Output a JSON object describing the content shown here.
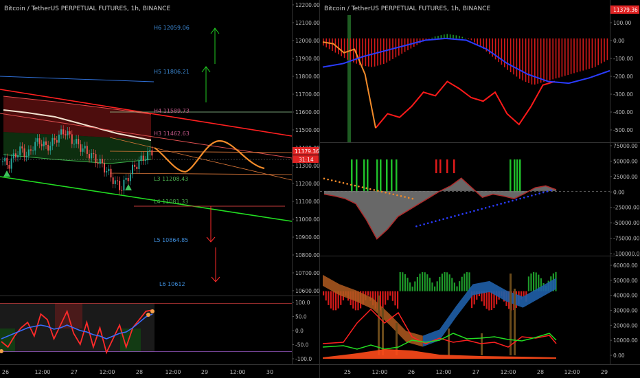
{
  "left_panel": {
    "title": "Bitcoin / TetherUS PERPETUAL FUTURES, 1h, BINANCE",
    "price_badge": "11379.36",
    "countdown_badge": "31:14",
    "price_axis": [
      "12200.00",
      "12100.00",
      "12000.00",
      "11900.00",
      "11800.00",
      "11700.00",
      "11600.00",
      "11500.00",
      "11400.00",
      "11300.00",
      "11200.00",
      "11100.00",
      "11000.00",
      "10900.00",
      "10800.00",
      "10700.00",
      "10600.00"
    ],
    "osc_axis": [
      "100.0",
      "50.0",
      "0.0",
      "-50.0",
      "-100.0"
    ],
    "levels": [
      {
        "label": "H6 12059.06",
        "color": "#3d8ad6"
      },
      {
        "label": "H5 11806.21",
        "color": "#3d8ad6"
      },
      {
        "label": "H4 11589.73",
        "color": "#c45a8a"
      },
      {
        "label": "H3 11462.63",
        "color": "#c45a8a"
      },
      {
        "label": "L3 11208.43",
        "color": "#4caf50"
      },
      {
        "label": "L4 11081.33",
        "color": "#4caf50"
      },
      {
        "label": "L5 10864.85",
        "color": "#3d8ad6"
      },
      {
        "label": "L6 10612",
        "color": "#3d8ad6"
      }
    ],
    "time_axis": [
      "26",
      "12:00",
      "27",
      "12:00",
      "28",
      "12:00",
      "29",
      "12:00",
      "30"
    ]
  },
  "right_panel": {
    "title": "Bitcoin / TetherUS PERPETUAL FUTURES, 1h, BINANCE",
    "price_badge": "11379.36",
    "top_axis": [
      "100.00",
      "0.00",
      "-100.00",
      "-200.00",
      "-300.00",
      "-400.00",
      "-500.00"
    ],
    "mid_axis": [
      "75000.00",
      "50000.00",
      "25000.00",
      "0.00",
      "-25000.00",
      "-50000.00",
      "-75000.00",
      "-100000.00"
    ],
    "bot_axis": [
      "60000.00",
      "50000.00",
      "40000.00",
      "30000.00",
      "20000.00",
      "10000.00",
      "0.00"
    ],
    "time_axis": [
      "25",
      "12:00",
      "26",
      "12:00",
      "27",
      "12:00",
      "28",
      "12:00",
      "29"
    ]
  },
  "chart_data": [
    {
      "type": "candlestick",
      "title": "Bitcoin / TetherUS PERPETUAL FUTURES, 1h, BINANCE",
      "ylim": [
        10560,
        12240
      ],
      "last_price": 11379.36,
      "pivot_levels": {
        "H6": 12059.06,
        "H5": 11806.21,
        "H4": 11589.73,
        "H3": 11462.63,
        "L3": 11208.43,
        "L4": 11081.33,
        "L5": 10864.85,
        "L6": 10612
      },
      "close_approx": [
        11320,
        11300,
        11360,
        11390,
        11350,
        11420,
        11440,
        11400,
        11430,
        11470,
        11500,
        11450,
        11420,
        11390,
        11360,
        11330,
        11300,
        11250,
        11200,
        11160,
        11220,
        11280,
        11320,
        11350,
        11379
      ]
    },
    {
      "type": "line",
      "title": "",
      "ylim": [
        -100,
        100
      ],
      "series": [
        {
          "values": [
            -40,
            -60,
            -20,
            10,
            30,
            -20,
            60,
            40,
            -30,
            20,
            70,
            -10,
            -50,
            30,
            -60,
            10,
            -80,
            -30,
            20,
            -60,
            10,
            40,
            70,
            75
          ]
        },
        {
          "values": [
            -30,
            -20,
            -10,
            0,
            10,
            15,
            20,
            15,
            5,
            10,
            20,
            10,
            0,
            -5,
            -15,
            -20,
            -30,
            -20,
            -10,
            -5,
            10,
            30,
            50,
            60
          ]
        }
      ]
    },
    {
      "type": "bar",
      "title": "",
      "ylim": [
        -560,
        130
      ],
      "values_histogram": [
        -40,
        -80,
        -120,
        -150,
        -160,
        -140,
        -100,
        -60,
        -20,
        10,
        25,
        15,
        -10,
        -60,
        -120,
        -180,
        -230,
        -260,
        -240,
        -220,
        -200,
        -180,
        -160,
        -120
      ],
      "series": [
        {
          "values": [
            -20,
            -30,
            -80,
            -60,
            -200,
            -500,
            -420,
            -440,
            -380,
            -300,
            -320,
            -240,
            -280,
            -330,
            -350,
            -300,
            -420,
            -480,
            -380,
            -260,
            -240
          ]
        },
        {
          "values": [
            -160,
            -140,
            -100,
            -70,
            -40,
            -10,
            0,
            -10,
            -60,
            -140,
            -200,
            -240,
            -250,
            -220,
            -180
          ]
        }
      ]
    },
    {
      "type": "area",
      "title": "",
      "ylim": [
        -100000,
        75000
      ],
      "values": [
        -5000,
        -8000,
        -12000,
        -20000,
        -45000,
        -75000,
        -60000,
        -40000,
        -30000,
        -20000,
        -10000,
        0,
        8000,
        20000,
        5000,
        -10000,
        -5000,
        -8000,
        -12000,
        -4000,
        5000,
        8000,
        2000
      ]
    },
    {
      "type": "area",
      "title": "",
      "ylim": [
        -2000,
        64000
      ],
      "values": [
        50000,
        44000,
        40000,
        35000,
        25000,
        14000,
        11000,
        15000,
        30000,
        44000,
        46000,
        40000,
        36000,
        42000,
        48000
      ]
    }
  ]
}
